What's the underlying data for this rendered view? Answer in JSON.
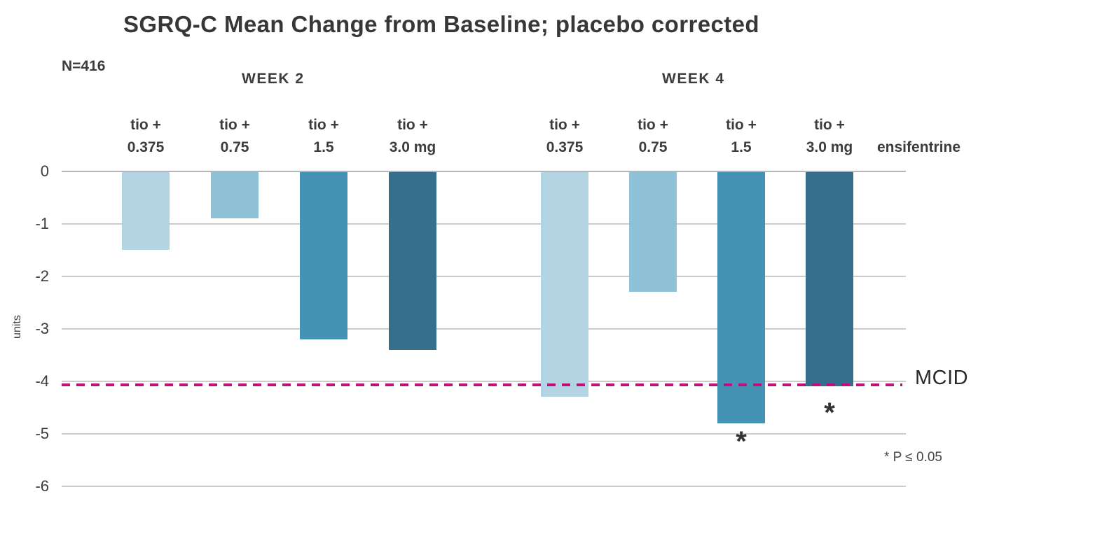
{
  "chart_data": {
    "type": "bar",
    "title": "SGRQ-C Mean Change from Baseline; placebo corrected",
    "n_label": "N=416",
    "ylabel": "units",
    "ylim": [
      -6,
      0
    ],
    "yticks": [
      0,
      -1,
      -2,
      -3,
      -4,
      -5,
      -6
    ],
    "grid": true,
    "series_suffix": "ensifentrine",
    "palette": [
      "#b3d5e3",
      "#8ec1d6",
      "#4493b4",
      "#34708c"
    ],
    "mcid": {
      "label": "MCID",
      "value": -4,
      "line_color": "#bf1278"
    },
    "significance_note": "* P ≤ 0.05",
    "significance_marker": "*",
    "groups": [
      {
        "id": "week2",
        "label": "WEEK 2",
        "bars": [
          {
            "label_line1": "tio +",
            "label_line2": "0.375",
            "dose": "0.375",
            "value": -1.5,
            "significant": false
          },
          {
            "label_line1": "tio +",
            "label_line2": "0.75",
            "dose": "0.75",
            "value": -0.9,
            "significant": false
          },
          {
            "label_line1": "tio +",
            "label_line2": "1.5",
            "dose": "1.5",
            "value": -3.2,
            "significant": false
          },
          {
            "label_line1": "tio +",
            "label_line2": "3.0 mg",
            "dose": "3.0mg",
            "value": -3.4,
            "significant": false
          }
        ]
      },
      {
        "id": "week4",
        "label": "WEEK 4",
        "bars": [
          {
            "label_line1": "tio +",
            "label_line2": "0.375",
            "dose": "0.375",
            "value": -4.3,
            "significant": false
          },
          {
            "label_line1": "tio +",
            "label_line2": "0.75",
            "dose": "0.75",
            "value": -2.3,
            "significant": false
          },
          {
            "label_line1": "tio +",
            "label_line2": "1.5",
            "dose": "1.5",
            "value": -4.8,
            "significant": true
          },
          {
            "label_line1": "tio +",
            "label_line2": "3.0 mg",
            "dose": "3.0mg",
            "value": -4.1,
            "significant": true
          }
        ]
      }
    ]
  }
}
